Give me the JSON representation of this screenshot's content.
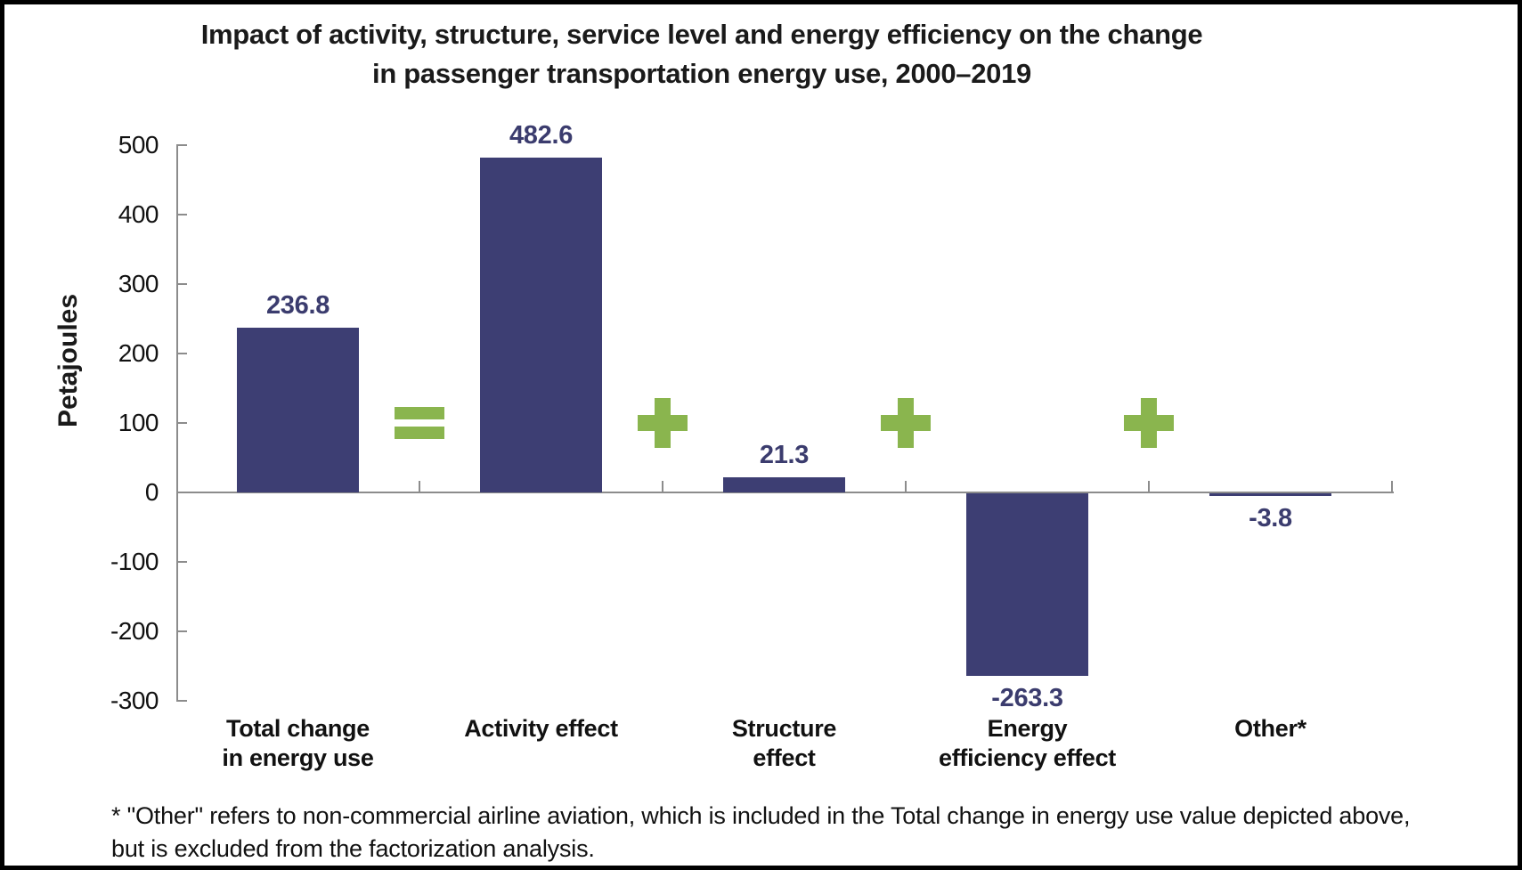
{
  "title": {
    "line1": "Impact of activity, structure, service level and energy efficiency on the change",
    "line2": "in passenger transportation energy use, 2000–2019"
  },
  "chart_data": {
    "type": "bar",
    "title": "Impact of activity, structure, service level and energy efficiency on the change in passenger transportation energy use, 2000–2019",
    "xlabel": "",
    "ylabel": "Petajoules",
    "ylim": [
      -300,
      500
    ],
    "yticks": [
      500,
      400,
      300,
      200,
      100,
      0,
      -100,
      -200,
      -300
    ],
    "grid": false,
    "legend_position": "none",
    "categories": [
      {
        "lines": [
          "Total change",
          "in energy use"
        ]
      },
      {
        "lines": [
          "Activity effect"
        ]
      },
      {
        "lines": [
          "Structure",
          "effect"
        ]
      },
      {
        "lines": [
          "Energy",
          "efficiency effect"
        ]
      },
      {
        "lines": [
          "Other*"
        ]
      }
    ],
    "values": [
      236.8,
      482.6,
      21.3,
      -263.3,
      -3.8
    ],
    "value_labels": [
      "236.8",
      "482.6",
      "21.3",
      "-263.3",
      "-3.8"
    ],
    "operators": [
      "=",
      "+",
      "+",
      "+"
    ],
    "colors": {
      "bar": "#3d3e73",
      "value_label": "#3b3c6e",
      "operator": "#8ab54e",
      "axis": "#8c8c8c",
      "text": "#111111"
    }
  },
  "footnote": {
    "line1": "* \"Other\" refers to non-commercial airline aviation, which is included in the Total change in energy use value depicted above,",
    "line2": "but is excluded from the factorization analysis."
  }
}
